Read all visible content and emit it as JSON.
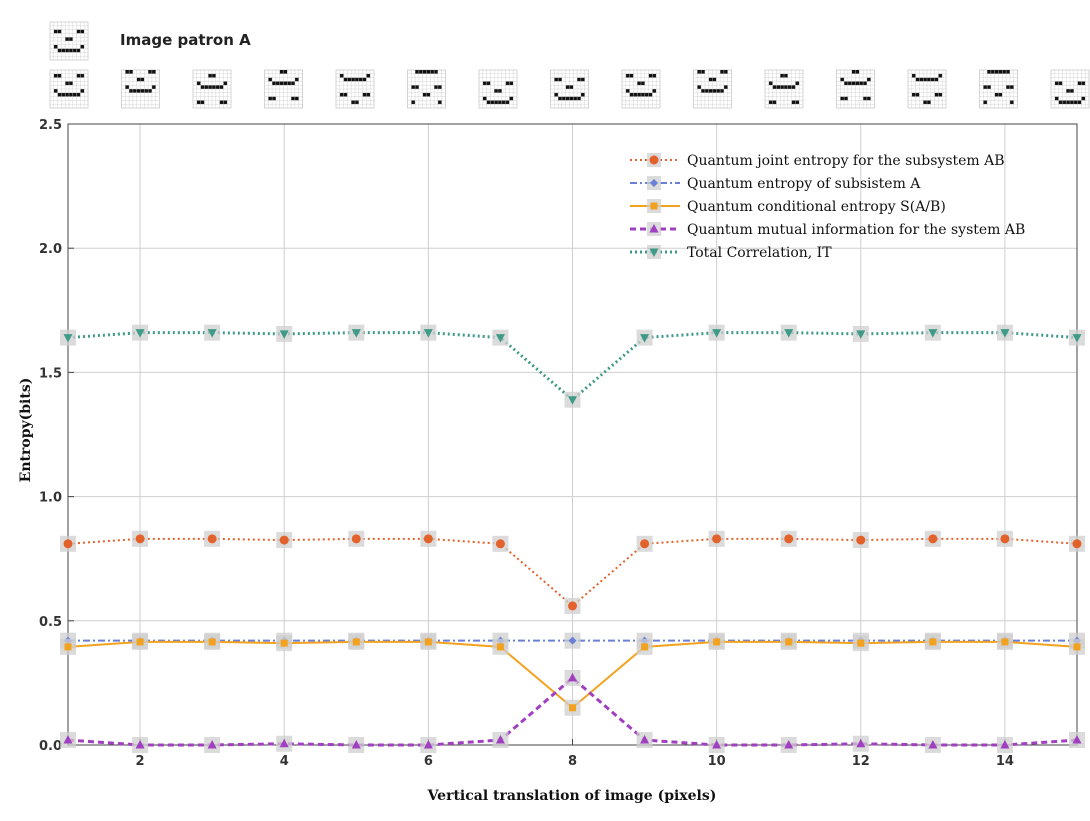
{
  "header": {
    "patron_label": "Image patron A"
  },
  "colors": {
    "joint": "#e3612a",
    "entropyA": "#6a7fd6",
    "conditional": "#f2a21e",
    "mutual": "#a03fbf",
    "total": "#3f9b87",
    "marker_box": "#cfcfcf",
    "grid": "#cfcfcf"
  },
  "chart_data": {
    "type": "line",
    "xlabel": "Vertical translation of image (pixels)",
    "ylabel": "Entropy(bits)",
    "xlim": [
      1,
      15
    ],
    "ylim": [
      0,
      2.5
    ],
    "x_ticks": [
      2,
      4,
      6,
      8,
      10,
      12,
      14
    ],
    "y_ticks": [
      0.0,
      0.5,
      1.0,
      1.5,
      2.0,
      2.5
    ],
    "grid": true,
    "legend_position": "top-right",
    "x": [
      1,
      2,
      3,
      4,
      5,
      6,
      7,
      8,
      9,
      10,
      11,
      12,
      13,
      14,
      15
    ],
    "series": [
      {
        "name": "Quantum joint entropy for the subsystem AB",
        "key": "joint",
        "marker": "circle",
        "dash": "dotted",
        "values": [
          0.81,
          0.83,
          0.83,
          0.825,
          0.83,
          0.83,
          0.81,
          0.56,
          0.81,
          0.83,
          0.83,
          0.825,
          0.83,
          0.83,
          0.81
        ]
      },
      {
        "name": "Quantum entropy of subsistem A",
        "key": "entropyA",
        "marker": "diamond",
        "dash": "dashdot",
        "values": [
          0.42,
          0.42,
          0.42,
          0.42,
          0.42,
          0.42,
          0.42,
          0.42,
          0.42,
          0.42,
          0.42,
          0.42,
          0.42,
          0.42,
          0.42
        ]
      },
      {
        "name": "Quantum conditional entropy S(A/B)",
        "key": "conditional",
        "marker": "square",
        "dash": "solid",
        "values": [
          0.395,
          0.415,
          0.415,
          0.41,
          0.415,
          0.415,
          0.395,
          0.15,
          0.395,
          0.415,
          0.415,
          0.41,
          0.415,
          0.415,
          0.395
        ]
      },
      {
        "name": "Quantum mutual information for the system AB",
        "key": "mutual",
        "marker": "triangle-up",
        "dash": "dashed",
        "values": [
          0.02,
          0.0,
          0.0,
          0.005,
          0.0,
          0.0,
          0.02,
          0.27,
          0.02,
          0.0,
          0.0,
          0.005,
          0.0,
          0.0,
          0.02
        ]
      },
      {
        "name": "Total Correlation, IT",
        "key": "total",
        "marker": "triangle-down",
        "dash": "dotted",
        "values": [
          1.64,
          1.66,
          1.66,
          1.655,
          1.66,
          1.66,
          1.64,
          1.39,
          1.64,
          1.66,
          1.66,
          1.655,
          1.66,
          1.66,
          1.64
        ]
      }
    ]
  },
  "face_icons": {
    "patron": {
      "name": "face-pattern-A",
      "rows": [
        "0000000000",
        "0000000000",
        "0110000110",
        "0000000000",
        "0000110000",
        "0000000000",
        "0100000010",
        "0011111100",
        "0000000000",
        "0000000000"
      ]
    },
    "sequence": [
      {
        "name": "face-shift-1",
        "rows": [
          "0000000000",
          "0110000110",
          "0000000000",
          "0000110000",
          "0000000000",
          "0100000010",
          "0011111100",
          "0000000000",
          "0000000000",
          "0000000000"
        ]
      },
      {
        "name": "face-shift-2",
        "rows": [
          "0110000110",
          "0000000000",
          "0000110000",
          "0000000000",
          "0100000010",
          "0011111100",
          "0000000000",
          "0000000000",
          "0000000000",
          "0000000000"
        ]
      },
      {
        "name": "face-shift-3",
        "rows": [
          "0000000000",
          "0000110000",
          "0000000000",
          "0100000010",
          "0011111100",
          "0000000000",
          "0000000000",
          "0000000000",
          "0110000110",
          "0000000000"
        ]
      },
      {
        "name": "face-shift-4",
        "rows": [
          "0000110000",
          "0000000000",
          "0100000010",
          "0011111100",
          "0000000000",
          "0000000000",
          "0000000000",
          "0110000110",
          "0000000000",
          "0000000000"
        ]
      },
      {
        "name": "face-shift-5",
        "rows": [
          "0000000000",
          "0100000010",
          "0011111100",
          "0000000000",
          "0000000000",
          "0000000000",
          "0110000110",
          "0000000000",
          "0000110000",
          "0000000000"
        ]
      },
      {
        "name": "face-shift-6",
        "rows": [
          "0011111100",
          "0000000000",
          "0000000000",
          "0000000000",
          "0110000110",
          "0000000000",
          "0000110000",
          "0000000000",
          "0100000010",
          "0000000000"
        ]
      },
      {
        "name": "face-shift-7",
        "rows": [
          "0000000000",
          "0000000000",
          "0000000000",
          "0110000110",
          "0000000000",
          "0000110000",
          "0000000000",
          "0100000010",
          "0011111100",
          "0000000000"
        ]
      },
      {
        "name": "face-shift-8",
        "rows": [
          "0000000000",
          "0000000000",
          "0110000110",
          "0000000000",
          "0000110000",
          "0000000000",
          "0100000010",
          "0011111100",
          "0000000000",
          "0000000000"
        ]
      },
      {
        "name": "face-shift-9",
        "rows": [
          "0000000000",
          "0110000110",
          "0000000000",
          "0000110000",
          "0000000000",
          "0100000010",
          "0011111100",
          "0000000000",
          "0000000000",
          "0000000000"
        ]
      },
      {
        "name": "face-shift-10",
        "rows": [
          "0110000110",
          "0000000000",
          "0000110000",
          "0000000000",
          "0100000010",
          "0011111100",
          "0000000000",
          "0000000000",
          "0000000000",
          "0000000000"
        ]
      },
      {
        "name": "face-shift-11",
        "rows": [
          "0000000000",
          "0000110000",
          "0000000000",
          "0100000010",
          "0011111100",
          "0000000000",
          "0000000000",
          "0000000000",
          "0110000110",
          "0000000000"
        ]
      },
      {
        "name": "face-shift-12",
        "rows": [
          "0000110000",
          "0000000000",
          "0100000010",
          "0011111100",
          "0000000000",
          "0000000000",
          "0000000000",
          "0110000110",
          "0000000000",
          "0000000000"
        ]
      },
      {
        "name": "face-shift-13",
        "rows": [
          "0000000000",
          "0100000010",
          "0011111100",
          "0000000000",
          "0000000000",
          "0000000000",
          "0110000110",
          "0000000000",
          "0000110000",
          "0000000000"
        ]
      },
      {
        "name": "face-shift-14",
        "rows": [
          "0011111100",
          "0000000000",
          "0000000000",
          "0000000000",
          "0110000110",
          "0000000000",
          "0000110000",
          "0000000000",
          "0100000010",
          "0000000000"
        ]
      },
      {
        "name": "face-shift-15",
        "rows": [
          "0000000000",
          "0000000000",
          "0000000000",
          "0110000110",
          "0000000000",
          "0000110000",
          "0000000000",
          "0100000010",
          "0011111100",
          "0000000000"
        ]
      }
    ]
  }
}
